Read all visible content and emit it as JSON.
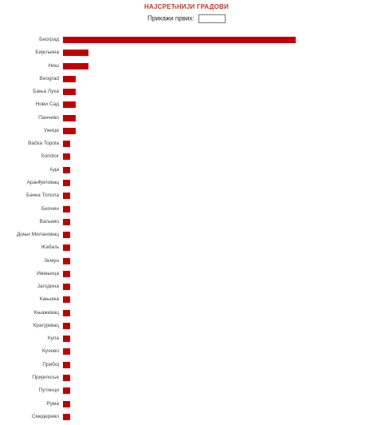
{
  "title": "НАЈСРЕЋНИЈИ ГРАДОВИ",
  "filter": {
    "label": "Прикажи првих:",
    "value": ""
  },
  "colors": {
    "bar": "#c00000",
    "title": "#c0392b"
  },
  "chart_data": {
    "type": "bar",
    "orientation": "horizontal",
    "title": "НАЈСРЕЋНИЈИ ГРАДОВИ",
    "categories": [
      "Београд",
      "Бијељина",
      "Ниш",
      "Beograd",
      "Бања Лука",
      "Нови Сад",
      "Панчево",
      "Ужице",
      "Bačka Topola",
      "Sombor",
      "Ада",
      "Аранђеловац",
      "Бачка Топола",
      "Беочин",
      "Ваљево",
      "Доњи Милановац",
      "Жабаљ",
      "Земун",
      "Ивањица",
      "Јагодина",
      "Кањижа",
      "Књажевац",
      "Крагујевац",
      "Купа",
      "Кучево",
      "Прибој",
      "Пријепоље",
      "Путинци",
      "Рума",
      "Смедерево"
    ],
    "values": [
      37,
      4,
      4,
      2,
      2,
      2,
      2,
      2,
      1,
      1,
      1,
      1,
      1,
      1,
      1,
      1,
      1,
      1,
      1,
      1,
      1,
      1,
      1,
      1,
      1,
      1,
      1,
      1,
      1,
      1
    ],
    "xlim": [
      0,
      37
    ],
    "grid": false,
    "legend": "none"
  }
}
